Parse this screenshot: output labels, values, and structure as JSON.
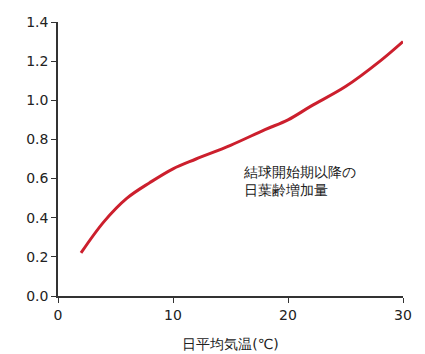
{
  "chart_data": {
    "type": "line",
    "x_label": "日平均気温(℃)",
    "annotation": [
      "結球開始期以降の",
      "日葉齢増加量"
    ],
    "x": [
      2,
      4,
      6,
      8,
      10,
      12,
      15,
      18,
      20,
      22,
      25,
      28,
      30
    ],
    "values": [
      0.22,
      0.38,
      0.5,
      0.58,
      0.65,
      0.7,
      0.77,
      0.85,
      0.9,
      0.97,
      1.07,
      1.2,
      1.3
    ],
    "color": "#cc1f2d",
    "xlim": [
      0,
      30
    ],
    "xticks": [
      0,
      10,
      20,
      30
    ],
    "ylim": [
      0,
      1.4
    ],
    "yticks": [
      {
        "value": 0,
        "label": "0.0"
      },
      0.2,
      0.4,
      0.6,
      0.8,
      {
        "value": 1,
        "label": "1.0"
      },
      1.2,
      1.4
    ],
    "grid": false
  }
}
